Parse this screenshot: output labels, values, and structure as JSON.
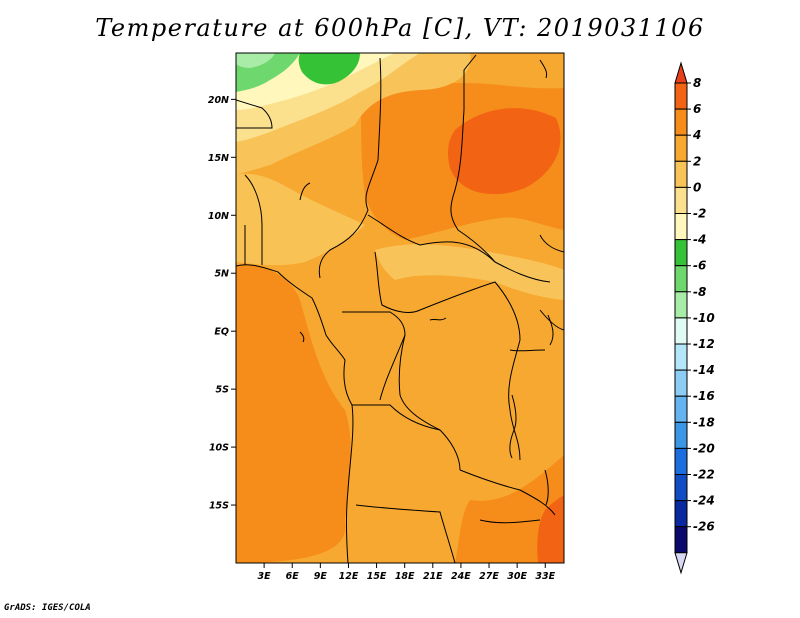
{
  "title": "Temperature at 600hPa [C], VT: 2019031106",
  "credit": "GrADS: IGES/COLA",
  "map": {
    "lon_range": [
      0,
      35
    ],
    "lat_range": [
      -20,
      24
    ],
    "lat_ticks": [
      {
        "lat": 20,
        "label": "20N"
      },
      {
        "lat": 15,
        "label": "15N"
      },
      {
        "lat": 10,
        "label": "10N"
      },
      {
        "lat": 5,
        "label": "5N"
      },
      {
        "lat": 0,
        "label": "EQ"
      },
      {
        "lat": -5,
        "label": "5S"
      },
      {
        "lat": -10,
        "label": "10S"
      },
      {
        "lat": -15,
        "label": "15S"
      }
    ],
    "lon_ticks": [
      {
        "lon": 3,
        "label": "3E"
      },
      {
        "lon": 6,
        "label": "6E"
      },
      {
        "lon": 9,
        "label": "9E"
      },
      {
        "lon": 12,
        "label": "12E"
      },
      {
        "lon": 15,
        "label": "15E"
      },
      {
        "lon": 18,
        "label": "18E"
      },
      {
        "lon": 21,
        "label": "21E"
      },
      {
        "lon": 24,
        "label": "24E"
      },
      {
        "lon": 27,
        "label": "27E"
      },
      {
        "lon": 30,
        "label": "30E"
      },
      {
        "lon": 33,
        "label": "33E"
      }
    ]
  },
  "colorbar": {
    "labels": [
      "8",
      "6",
      "4",
      "2",
      "0",
      "-2",
      "-4",
      "-6",
      "-8",
      "-10",
      "-12",
      "-14",
      "-16",
      "-18",
      "-20",
      "-22",
      "-24",
      "-26"
    ],
    "colors": [
      "#e8401c",
      "#f26414",
      "#f68c1a",
      "#f7a830",
      "#f8c45a",
      "#fbe08e",
      "#fff7bc",
      "#36c236",
      "#6ed86e",
      "#a8eca8",
      "#e0faf4",
      "#b4e6fa",
      "#8cccf5",
      "#64b4f0",
      "#3c96e6",
      "#1c6ede",
      "#104cc4",
      "#0a28a0",
      "#0a0a6e",
      "#d8d8f4"
    ]
  }
}
